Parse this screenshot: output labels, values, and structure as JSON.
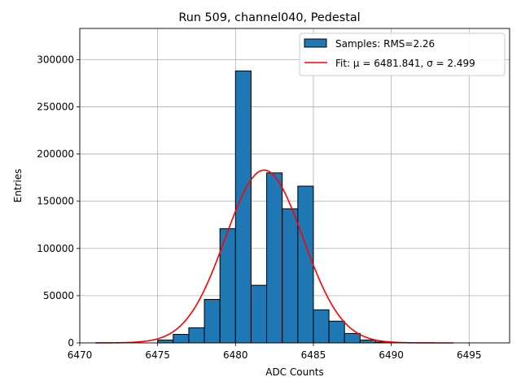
{
  "chart_data": {
    "type": "bar",
    "title": "Run 509, channel040, Pedestal",
    "xlabel": "ADC Counts",
    "ylabel": "Entries",
    "xlim": [
      6470,
      6497.6
    ],
    "ylim": [
      0,
      333000
    ],
    "xticks": [
      6470,
      6475,
      6480,
      6485,
      6490,
      6495
    ],
    "yticks": [
      0,
      50000,
      100000,
      150000,
      200000,
      250000,
      300000
    ],
    "grid": true,
    "legend_position": "top-right",
    "bar_color": "#1f77b4",
    "fit_color": "#ff0000",
    "histogram": {
      "name": "Samples: RMS=2.26",
      "bin_width": 1,
      "bins": [
        {
          "x": 6471,
          "value": 0
        },
        {
          "x": 6472,
          "value": 0
        },
        {
          "x": 6473,
          "value": 0
        },
        {
          "x": 6474,
          "value": 0
        },
        {
          "x": 6475,
          "value": 3000
        },
        {
          "x": 6476,
          "value": 9000
        },
        {
          "x": 6477,
          "value": 16000
        },
        {
          "x": 6478,
          "value": 46000
        },
        {
          "x": 6479,
          "value": 121000
        },
        {
          "x": 6480,
          "value": 288000
        },
        {
          "x": 6481,
          "value": 61000
        },
        {
          "x": 6482,
          "value": 180000
        },
        {
          "x": 6483,
          "value": 142000
        },
        {
          "x": 6484,
          "value": 166000
        },
        {
          "x": 6485,
          "value": 35000
        },
        {
          "x": 6486,
          "value": 23000
        },
        {
          "x": 6487,
          "value": 10000
        },
        {
          "x": 6488,
          "value": 3000
        },
        {
          "x": 6489,
          "value": 1000
        },
        {
          "x": 6490,
          "value": 0
        },
        {
          "x": 6491,
          "value": 0
        },
        {
          "x": 6492,
          "value": 0
        },
        {
          "x": 6493,
          "value": 0
        },
        {
          "x": 6494,
          "value": 0
        },
        {
          "x": 6495,
          "value": 0
        },
        {
          "x": 6496,
          "value": 0
        }
      ]
    },
    "fit": {
      "name": "Fit: μ = 6481.841, σ = 2.499",
      "mu": 6481.841,
      "sigma": 2.499,
      "amplitude": 183000,
      "x_range": [
        6471,
        6494
      ]
    }
  }
}
